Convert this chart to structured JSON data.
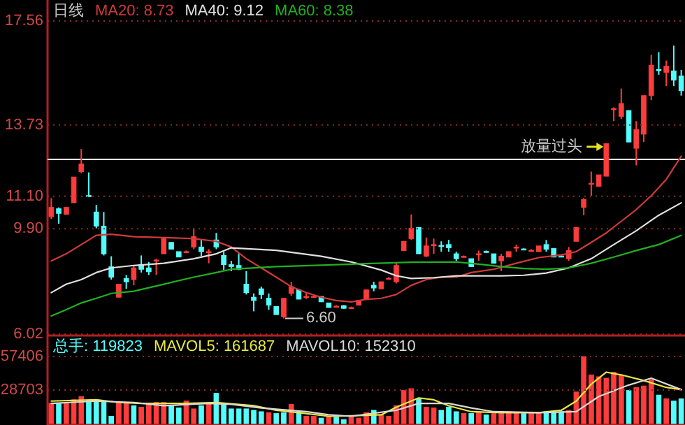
{
  "chart_data": [
    {
      "type": "candlestick",
      "title": "日线",
      "tick_labels": "y",
      "grid": "y",
      "ylim": [
        6.02,
        17.56
      ],
      "yticks": [
        6.02,
        {
          "value": 9.9,
          "label": "9.90"
        },
        {
          "value": 11.1,
          "label": "11.10"
        },
        13.73,
        17.56
      ],
      "colors": [
        "#ff3c3c",
        "#54fcfc",
        "#ff3c3c",
        "#ff3c3c",
        "#ff3c3c",
        "#54fcfc",
        "#54fcfc",
        "#54fcfc",
        "#54fcfc",
        "#ff3c3c",
        "#54fcfc",
        "#ff3c3c",
        "#54fcfc",
        "#54fcfc",
        "#ff3c3c",
        "#ff3c3c",
        "#54fcfc",
        "#54fcfc",
        "#ff3c3c",
        "#ff3c3c",
        "#54fcfc",
        "#ff3c3c",
        "#54fcfc",
        "#54fcfc",
        "#54fcfc",
        "#54fcfc",
        "#54fcfc",
        "#54fcfc",
        "#54fcfc",
        "#54fcfc",
        "#54fcfc",
        "#ff3c3c",
        "#ff3c3c",
        "#54fcfc",
        "#ff3c3c",
        "#ff3c3c",
        "#54fcfc",
        "#54fcfc",
        "#ff3c3c",
        "#54fcfc",
        "#ff3c3c",
        "#ff3c3c",
        "#ff3c3c",
        "#54fcfc",
        "#ff3c3c",
        "#ff3c3c",
        "#ff3c3c",
        "#ff3c3c",
        "#ff3c3c",
        "#54fcfc",
        "#ff3c3c",
        "#ff3c3c",
        "#54fcfc",
        "#54fcfc",
        "#54fcfc",
        "#ff3c3c",
        "#54fcfc",
        "#ff3c3c",
        "#54fcfc",
        "#54fcfc",
        "#ff3c3c",
        "#ff3c3c",
        "#ff3c3c",
        "#54fcfc",
        "#ff3c3c",
        "#ff3c3c",
        "#54fcfc",
        "#54fcfc",
        "#54fcfc",
        "#ff3c3c",
        "#ff3c3c",
        "#ff3c3c",
        "#ff3c3c",
        "#ff3c3c",
        "#ff3c3c",
        "#ff3c3c",
        "#ff3c3c",
        "#54fcfc",
        "#ff3c3c",
        "#ff3c3c",
        "#ff3c3c",
        "#54fcfc",
        "#ff3c3c",
        "#54fcfc",
        "#54fcfc"
      ],
      "categories": [
        null,
        null,
        null,
        null,
        null,
        null,
        null,
        null,
        null,
        null,
        null,
        null,
        null,
        null,
        null,
        null,
        null,
        null,
        null,
        null,
        null,
        null,
        null,
        null,
        null,
        null,
        null,
        null,
        null,
        null,
        null,
        null,
        null,
        null,
        null,
        null,
        null,
        null,
        null,
        null,
        null,
        null,
        null,
        null,
        null,
        null,
        null,
        null,
        null,
        null,
        null,
        null,
        null,
        null,
        null,
        null,
        null,
        null,
        null,
        null,
        null,
        null,
        null,
        null,
        null,
        null,
        null,
        null,
        null,
        null,
        null,
        null,
        null,
        null,
        null,
        null,
        null,
        null,
        null,
        null,
        null,
        null,
        null,
        null,
        null
      ],
      "ohlc": [
        [
          10.35,
          11.03,
          10.26,
          10.69
        ],
        [
          10.64,
          10.69,
          10.09,
          10.47
        ],
        [
          10.43,
          10.69,
          10.43,
          10.69
        ],
        [
          10.86,
          11.81,
          10.86,
          11.81
        ],
        [
          12.01,
          12.84,
          11.95,
          12.29
        ],
        [
          11.13,
          11.98,
          11.12,
          11.12
        ],
        [
          10.52,
          10.78,
          9.92,
          10.0
        ],
        [
          10.0,
          10.52,
          8.92,
          8.98
        ],
        [
          8.5,
          8.89,
          8.03,
          8.12
        ],
        [
          7.38,
          7.86,
          7.38,
          7.86
        ],
        [
          8.07,
          8.2,
          7.69,
          7.95
        ],
        [
          8.03,
          8.55,
          7.82,
          8.46
        ],
        [
          8.58,
          8.92,
          8.29,
          8.41
        ],
        [
          8.46,
          8.68,
          8.2,
          8.32
        ],
        [
          8.75,
          8.8,
          8.2,
          8.75
        ],
        [
          8.98,
          9.54,
          8.98,
          9.54
        ],
        [
          9.4,
          9.4,
          9.15,
          9.15
        ],
        [
          9.06,
          9.06,
          8.86,
          8.86
        ],
        [
          9.06,
          9.1,
          9.02,
          9.06
        ],
        [
          9.23,
          9.92,
          9.15,
          9.61
        ],
        [
          9.23,
          9.49,
          8.89,
          9.06
        ],
        [
          9.06,
          9.15,
          8.63,
          9.06
        ],
        [
          9.49,
          9.75,
          9.15,
          9.23
        ],
        [
          8.92,
          9.06,
          8.38,
          8.58
        ],
        [
          8.58,
          8.72,
          8.34,
          8.51
        ],
        [
          8.55,
          8.98,
          8.38,
          8.41
        ],
        [
          7.86,
          8.34,
          7.48,
          7.55
        ],
        [
          7.38,
          7.52,
          6.86,
          7.26
        ],
        [
          7.69,
          7.77,
          7.31,
          7.48
        ],
        [
          7.34,
          7.52,
          6.92,
          7.09
        ],
        [
          7.04,
          7.04,
          6.74,
          6.74
        ],
        [
          6.66,
          7.34,
          6.6,
          7.34
        ],
        [
          7.52,
          7.95,
          7.43,
          7.77
        ],
        [
          7.65,
          7.65,
          7.31,
          7.31
        ],
        [
          7.41,
          7.55,
          7.31,
          7.41
        ],
        [
          7.41,
          7.45,
          7.38,
          7.41
        ],
        [
          7.41,
          7.41,
          7.21,
          7.21
        ],
        [
          7.17,
          7.17,
          7.0,
          7.0
        ],
        [
          7.05,
          7.09,
          7.02,
          7.05
        ],
        [
          7.07,
          7.09,
          6.95,
          6.97
        ],
        [
          7.0,
          7.03,
          6.97,
          7.0
        ],
        [
          7.09,
          7.26,
          7.09,
          7.26
        ],
        [
          7.31,
          7.65,
          7.31,
          7.65
        ],
        [
          7.82,
          7.95,
          7.6,
          7.72
        ],
        [
          7.69,
          7.95,
          7.69,
          7.95
        ],
        [
          8.08,
          8.12,
          8.05,
          8.08
        ],
        [
          7.95,
          8.63,
          7.89,
          8.55
        ],
        [
          9.1,
          9.44,
          9.1,
          9.44
        ],
        [
          9.54,
          10.43,
          9.49,
          9.92
        ],
        [
          9.95,
          9.95,
          8.98,
          8.98
        ],
        [
          8.89,
          9.58,
          8.86,
          9.27
        ],
        [
          9.32,
          9.54,
          8.98,
          9.32
        ],
        [
          9.29,
          9.44,
          9.06,
          9.28
        ],
        [
          9.32,
          9.49,
          9.06,
          9.2
        ],
        [
          8.98,
          9.06,
          8.72,
          8.8
        ],
        [
          8.89,
          8.92,
          8.86,
          8.89
        ],
        [
          8.8,
          8.8,
          8.51,
          8.51
        ],
        [
          8.98,
          9.1,
          8.72,
          8.98
        ],
        [
          9.07,
          9.1,
          9.02,
          9.06
        ],
        [
          8.98,
          8.98,
          8.63,
          8.63
        ],
        [
          8.72,
          8.98,
          8.34,
          8.89
        ],
        [
          8.86,
          9.06,
          8.86,
          9.06
        ],
        [
          9.23,
          9.32,
          9.06,
          9.23
        ],
        [
          9.16,
          9.18,
          9.12,
          9.15
        ],
        [
          9.11,
          9.15,
          9.08,
          9.11
        ],
        [
          9.06,
          9.27,
          9.06,
          9.27
        ],
        [
          9.32,
          9.49,
          9.06,
          9.15
        ],
        [
          9.18,
          9.18,
          8.86,
          8.86
        ],
        [
          8.9,
          8.92,
          8.86,
          8.89
        ],
        [
          8.8,
          9.23,
          8.72,
          9.1
        ],
        [
          9.44,
          9.95,
          9.44,
          9.95
        ],
        [
          10.69,
          11.03,
          10.4,
          10.98
        ],
        [
          11.58,
          12.01,
          11.12,
          11.58
        ],
        [
          11.46,
          11.89,
          11.46,
          11.89
        ],
        [
          11.84,
          13.04,
          11.84,
          13.04
        ],
        [
          14.33,
          14.38,
          13.87,
          14.33
        ],
        [
          14.04,
          15.07,
          13.95,
          14.52
        ],
        [
          14.26,
          14.26,
          13.1,
          13.1
        ],
        [
          12.87,
          13.87,
          12.24,
          13.56
        ],
        [
          13.39,
          14.81,
          13.1,
          14.81
        ],
        [
          14.81,
          16.31,
          14.64,
          15.93
        ],
        [
          15.77,
          16.41,
          15.58,
          15.76
        ],
        [
          15.67,
          16.1,
          15.16,
          15.89
        ],
        [
          15.72,
          16.65,
          15.16,
          15.38
        ],
        [
          15.53,
          15.76,
          14.81,
          14.99
        ]
      ],
      "series": [
        {
          "name": "MA20: 8.73",
          "type": "line",
          "color": "#d03a3a",
          "values": [
            8.72,
            null,
            8.98,
            null,
            9.32,
            null,
            9.66,
            null,
            9.7,
            null,
            null,
            9.61,
            null,
            null,
            null,
            9.58,
            null,
            null,
            null,
            9.54,
            null,
            null,
            9.44,
            null,
            9.23,
            null,
            8.8,
            null,
            8.46,
            null,
            8.12,
            null,
            7.77,
            null,
            7.55,
            null,
            7.38,
            null,
            7.26,
            null,
            7.21,
            null,
            7.3,
            null,
            7.34,
            null,
            7.48,
            null,
            7.82,
            null,
            8.03,
            null,
            8.12,
            null,
            8.12,
            null,
            8.29,
            null,
            null,
            8.41,
            null,
            null,
            8.63,
            null,
            null,
            8.84,
            null,
            null,
            8.94,
            null,
            9.06,
            null,
            9.4,
            null,
            9.75,
            null,
            10.18,
            null,
            10.61,
            null,
            11.12,
            null,
            11.72,
            null,
            12.58
          ]
        },
        {
          "name": "MA40: 9.12",
          "type": "line",
          "color": "#e0e0e0",
          "values": [
            7.55,
            null,
            7.86,
            null,
            8.03,
            null,
            8.29,
            null,
            8.46,
            null,
            null,
            8.55,
            null,
            null,
            null,
            8.63,
            null,
            null,
            null,
            8.8,
            null,
            null,
            8.98,
            null,
            9.2,
            null,
            null,
            null,
            null,
            null,
            9.11,
            null,
            null,
            null,
            null,
            null,
            8.89,
            null,
            null,
            null,
            8.68,
            null,
            null,
            null,
            8.38,
            null,
            8.17,
            null,
            8.07,
            null,
            null,
            8.1,
            null,
            null,
            8.17,
            null,
            null,
            8.17,
            null,
            null,
            8.17,
            null,
            null,
            8.19,
            null,
            null,
            8.27,
            null,
            null,
            8.46,
            null,
            null,
            8.8,
            null,
            null,
            9.32,
            null,
            null,
            9.83,
            null,
            null,
            10.4,
            null,
            null,
            10.86
          ]
        },
        {
          "name": "MA60: 8.38",
          "type": "line",
          "color": "#22b022",
          "values": [
            6.69,
            null,
            6.92,
            null,
            7.17,
            null,
            7.34,
            null,
            7.52,
            null,
            null,
            7.6,
            null,
            null,
            null,
            7.86,
            null,
            null,
            null,
            8.12,
            null,
            null,
            8.29,
            null,
            8.41,
            null,
            null,
            null,
            null,
            null,
            8.51,
            null,
            null,
            null,
            null,
            null,
            8.56,
            null,
            null,
            null,
            null,
            null,
            8.62,
            null,
            null,
            null,
            null,
            null,
            8.67,
            null,
            null,
            null,
            null,
            null,
            8.68,
            null,
            null,
            8.6,
            null,
            null,
            8.51,
            null,
            null,
            8.44,
            null,
            null,
            8.41,
            null,
            null,
            8.46,
            null,
            null,
            8.63,
            null,
            null,
            8.86,
            null,
            null,
            9.1,
            null,
            null,
            9.32,
            null,
            null,
            9.66
          ]
        }
      ],
      "ref_lines": [
        {
          "axis": "y",
          "value": 12.46,
          "color": "#ffffff"
        }
      ],
      "annotations": [
        "6.60",
        "放量过头"
      ]
    },
    {
      "type": "bar",
      "tick_labels": "y",
      "grid": "y",
      "ylim": [
        0,
        73000
      ],
      "yticks": [
        28703,
        57406
      ],
      "categories": [
        null,
        null,
        null,
        null,
        null,
        null,
        null,
        null,
        null,
        null,
        null,
        null,
        null,
        null,
        null,
        null,
        null,
        null,
        null,
        null,
        null,
        null,
        null,
        null,
        null,
        null,
        null,
        null,
        null,
        null,
        null,
        null,
        null,
        null,
        null,
        null,
        null,
        null,
        null,
        null,
        null,
        null,
        null,
        null,
        null,
        null,
        null,
        null,
        null,
        null,
        null,
        null,
        null,
        null,
        null,
        null,
        null,
        null,
        null,
        null,
        null,
        null,
        null,
        null,
        null,
        null,
        null,
        null,
        null,
        null,
        null,
        null,
        null,
        null,
        null,
        null,
        null,
        null,
        null,
        null,
        null,
        null,
        null,
        null,
        null
      ],
      "series": [
        {
          "name": "总手: 119823",
          "color": "#54fcfc",
          "values": [
            17300,
            17300,
            17300,
            20400,
            23200,
            19300,
            20400,
            19300,
            6300,
            18100,
            17300,
            15300,
            14100,
            17300,
            18100,
            18100,
            15300,
            13400,
            19300,
            12600,
            15300,
            17300,
            25900,
            17300,
            12600,
            12600,
            12600,
            11400,
            10200,
            9400,
            8600,
            9400,
            16500,
            10200,
            6300,
            6300,
            4700,
            6300,
            5500,
            3500,
            5500,
            4700,
            9400,
            11400,
            7500,
            6300,
            15300,
            28300,
            29900,
            21200,
            14100,
            13400,
            11400,
            14100,
            10200,
            8600,
            8600,
            9400,
            7500,
            8600,
            8600,
            10200,
            9400,
            8600,
            9400,
            8600,
            10200,
            10200,
            10200,
            11400,
            27100,
            57400,
            41700,
            40100,
            38900,
            44000,
            40900,
            28300,
            31000,
            32200,
            37700,
            24400,
            21200,
            19300,
            21200
          ],
          "colors": [
            "#ff3c3c",
            "#54fcfc",
            "#ff3c3c",
            "#ff3c3c",
            "#ff3c3c",
            "#54fcfc",
            "#54fcfc",
            "#54fcfc",
            "#54fcfc",
            "#ff3c3c",
            "#ff3c3c",
            "#54fcfc",
            "#ff3c3c",
            "#ff3c3c",
            "#ff3c3c",
            "#ff3c3c",
            "#54fcfc",
            "#54fcfc",
            "#ff3c3c",
            "#ff3c3c",
            "#54fcfc",
            "#ff3c3c",
            "#54fcfc",
            "#54fcfc",
            "#54fcfc",
            "#54fcfc",
            "#54fcfc",
            "#54fcfc",
            "#54fcfc",
            "#ff3c3c",
            "#54fcfc",
            "#54fcfc",
            "#ff3c3c",
            "#54fcfc",
            "#ff3c3c",
            "#ff3c3c",
            "#54fcfc",
            "#ff3c3c",
            "#54fcfc",
            "#54fcfc",
            "#ff3c3c",
            "#ff3c3c",
            "#ff3c3c",
            "#54fcfc",
            "#ff3c3c",
            "#ff3c3c",
            "#ff3c3c",
            "#ff3c3c",
            "#ff3c3c",
            "#54fcfc",
            "#ff3c3c",
            "#ff3c3c",
            "#54fcfc",
            "#54fcfc",
            "#54fcfc",
            "#ff3c3c",
            "#54fcfc",
            "#ff3c3c",
            "#54fcfc",
            "#ff3c3c",
            "#ff3c3c",
            "#ff3c3c",
            "#ff3c3c",
            "#54fcfc",
            "#ff3c3c",
            "#ff3c3c",
            "#54fcfc",
            "#54fcfc",
            "#54fcfc",
            "#ff3c3c",
            "#ff3c3c",
            "#ff3c3c",
            "#ff3c3c",
            "#ff3c3c",
            "#ff3c3c",
            "#ff3c3c",
            "#ff3c3c",
            "#54fcfc",
            "#ff3c3c",
            "#ff3c3c",
            "#ff3c3c",
            "#54fcfc",
            "#ff3c3c",
            "#54fcfc",
            "#54fcfc"
          ]
        },
        {
          "name": "MAVOL5: 161687",
          "type": "line",
          "color": "#e8e840",
          "values": [
            19300,
            null,
            null,
            null,
            null,
            null,
            20400,
            null,
            null,
            18100,
            null,
            null,
            17300,
            null,
            null,
            null,
            null,
            null,
            17300,
            null,
            null,
            null,
            18100,
            null,
            null,
            null,
            null,
            15300,
            null,
            null,
            11400,
            null,
            null,
            9400,
            null,
            null,
            null,
            6300,
            null,
            null,
            6700,
            null,
            null,
            null,
            7500,
            null,
            14100,
            null,
            null,
            22000,
            null,
            20400,
            null,
            15300,
            null,
            null,
            10200,
            null,
            null,
            null,
            9400,
            null,
            null,
            null,
            null,
            9400,
            null,
            null,
            11400,
            null,
            19300,
            null,
            33800,
            null,
            44000,
            null,
            41700,
            null,
            null,
            36900,
            null,
            null,
            31000,
            null,
            29100
          ]
        },
        {
          "name": "MAVOL10: 152310",
          "type": "line",
          "color": "#d8d8d8",
          "values": [
            17300,
            null,
            null,
            null,
            null,
            null,
            19300,
            null,
            null,
            null,
            null,
            18100,
            null,
            null,
            null,
            15300,
            null,
            null,
            null,
            null,
            null,
            17300,
            null,
            null,
            16500,
            null,
            null,
            null,
            13400,
            null,
            null,
            null,
            null,
            null,
            10200,
            null,
            null,
            7500,
            null,
            null,
            6300,
            null,
            null,
            null,
            null,
            null,
            11400,
            null,
            null,
            17300,
            null,
            null,
            null,
            17300,
            null,
            null,
            13400,
            null,
            null,
            10200,
            null,
            null,
            null,
            null,
            null,
            9400,
            null,
            null,
            null,
            null,
            10200,
            null,
            null,
            23200,
            null,
            null,
            null,
            33000,
            null,
            null,
            38900,
            null,
            null,
            null,
            29100
          ]
        }
      ]
    }
  ]
}
